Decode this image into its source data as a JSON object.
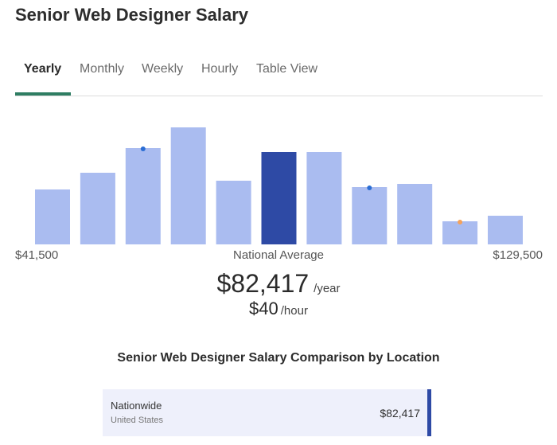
{
  "page": {
    "title": "Senior Web Designer Salary"
  },
  "tabs": [
    {
      "label": "Yearly",
      "active": true
    },
    {
      "label": "Monthly",
      "active": false
    },
    {
      "label": "Weekly",
      "active": false
    },
    {
      "label": "Hourly",
      "active": false
    },
    {
      "label": "Table View",
      "active": false
    }
  ],
  "chart_data": {
    "type": "bar",
    "categories": [
      1,
      2,
      3,
      4,
      5,
      6,
      7,
      8,
      9,
      10,
      11
    ],
    "values": [
      69,
      90,
      121,
      147,
      80,
      116,
      116,
      72,
      76,
      29,
      36
    ],
    "ylim": [
      0,
      150
    ],
    "highlight_index": 5,
    "markers": [
      {
        "index": 2,
        "color": "#2a6dd4"
      },
      {
        "index": 7,
        "color": "#2a6dd4"
      },
      {
        "index": 9,
        "color": "#f4a25b"
      }
    ],
    "colors": {
      "bar": "#aabcf0",
      "highlight": "#2e4aa5"
    },
    "x_min_label": "$41,500",
    "x_mid_label": "National Average",
    "x_max_label": "$129,500"
  },
  "salary": {
    "yearly_value": "$82,417",
    "yearly_unit": "/year",
    "hourly_value": "$40",
    "hourly_unit": "/hour"
  },
  "comparison": {
    "title": "Senior Web Designer Salary Comparison by Location",
    "rows": [
      {
        "name": "Nationwide",
        "sub": "United States",
        "value": "$82,417"
      }
    ]
  }
}
